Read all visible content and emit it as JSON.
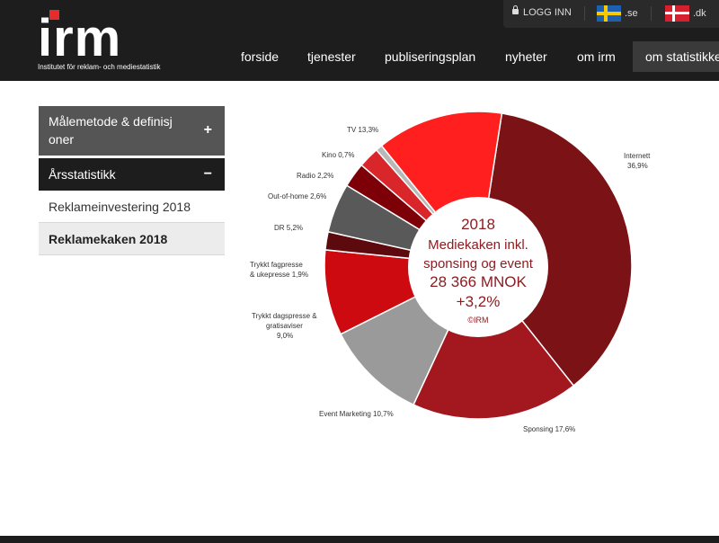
{
  "logo": {
    "text": "irm",
    "tagline": "Institutet för reklam- och mediestatistik"
  },
  "topbar": {
    "login_label": "LOGG INN",
    "lang_se": ".se",
    "lang_dk": ".dk"
  },
  "nav": {
    "items": [
      "forside",
      "tjenester",
      "publiseringsplan",
      "nyheter",
      "om irm",
      "om statistikken"
    ]
  },
  "sidebar": {
    "section1_label": "Målemetode & definisjoner",
    "section1_line1": "Målemetode & definisj",
    "section1_line2": "oner",
    "section1_toggle": "+",
    "section2_label": "Årsstatistikk",
    "section2_toggle": "−",
    "sub_items": [
      "Reklameinvestering 2018",
      "Reklamekaken 2018"
    ]
  },
  "chart_data": {
    "type": "pie",
    "title": "",
    "center_text": [
      "2018",
      "Mediekaken inkl.",
      "sponsing og event",
      "28 366 MNOK",
      "+3,2%",
      "©IRM"
    ],
    "slices": [
      {
        "label": "Internett",
        "value": 36.9,
        "display": "36,9%",
        "color": "#7b1216"
      },
      {
        "label": "Sponsing",
        "value": 17.6,
        "display": "17,6%",
        "color": "#a3181e"
      },
      {
        "label": "Event Marketing",
        "value": 10.7,
        "display": "10,7%",
        "color": "#9a9a9a"
      },
      {
        "label": "Trykkt dagspresse & gratisaviser",
        "value": 9.0,
        "display": "9,0%",
        "color": "#cc0a10"
      },
      {
        "label": "Trykkt fagpresse & ukepresse",
        "value": 1.9,
        "display": "1,9%",
        "color": "#5c0a0e"
      },
      {
        "label": "DR",
        "value": 5.2,
        "display": "5,2%",
        "color": "#595959"
      },
      {
        "label": "Out-of-home",
        "value": 2.6,
        "display": "2,6%",
        "color": "#7d0008"
      },
      {
        "label": "Radio",
        "value": 2.2,
        "display": "2,2%",
        "color": "#d8262b"
      },
      {
        "label": "Kino",
        "value": 0.7,
        "display": "0,7%",
        "color": "#b8b8b8"
      },
      {
        "label": "TV",
        "value": 13.3,
        "display": "13,3%",
        "color": "#ff1f1f"
      }
    ]
  }
}
